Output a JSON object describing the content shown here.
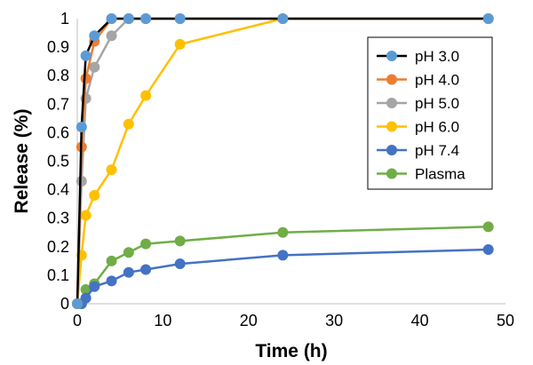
{
  "chart_data": {
    "type": "line",
    "title": "",
    "xlabel": "Time (h)",
    "ylabel": "Release (%)",
    "xlim": [
      0,
      50
    ],
    "ylim": [
      0,
      1
    ],
    "x_ticks": [
      "0",
      "10",
      "20",
      "30",
      "40",
      "50"
    ],
    "y_ticks": [
      "0",
      "0.1",
      "0.2",
      "0.3",
      "0.4",
      "0.5",
      "0.6",
      "0.7",
      "0.8",
      "0.9",
      "1"
    ],
    "grid": false,
    "legend_position": "top-right",
    "series": [
      {
        "name": "pH 3.0",
        "color": "#5b9bd5",
        "line_color": "#000000",
        "x": [
          0,
          0.5,
          1,
          2,
          4,
          6,
          8,
          12,
          24,
          48
        ],
        "y": [
          0,
          0.62,
          0.87,
          0.94,
          1.0,
          1.0,
          1.0,
          1.0,
          1.0,
          1.0
        ]
      },
      {
        "name": "pH 4.0",
        "color": "#ed7d31",
        "line_color": "#ed7d31",
        "x": [
          0,
          0.5,
          1,
          2,
          4,
          6,
          8,
          12,
          24,
          48
        ],
        "y": [
          0,
          0.55,
          0.79,
          0.92,
          1.0,
          1.0,
          1.0,
          1.0,
          1.0,
          1.0
        ]
      },
      {
        "name": "pH 5.0",
        "color": "#a5a5a5",
        "line_color": "#a5a5a5",
        "x": [
          0,
          0.5,
          1,
          2,
          4,
          6,
          8,
          12,
          24,
          48
        ],
        "y": [
          0,
          0.43,
          0.72,
          0.83,
          0.94,
          1.0,
          1.0,
          1.0,
          1.0,
          1.0
        ]
      },
      {
        "name": "pH 6.0",
        "color": "#ffc000",
        "line_color": "#ffc000",
        "x": [
          0,
          0.5,
          1,
          2,
          4,
          6,
          8,
          12,
          24,
          48
        ],
        "y": [
          0,
          0.17,
          0.31,
          0.38,
          0.47,
          0.63,
          0.73,
          0.91,
          1.0,
          1.0
        ]
      },
      {
        "name": "pH 7.4",
        "color": "#4472c4",
        "line_color": "#4472c4",
        "x": [
          0,
          0.5,
          1,
          2,
          4,
          6,
          8,
          12,
          24,
          48
        ],
        "y": [
          0,
          0,
          0.02,
          0.06,
          0.08,
          0.11,
          0.12,
          0.14,
          0.17,
          0.19
        ]
      },
      {
        "name": "Plasma",
        "color": "#70ad47",
        "line_color": "#70ad47",
        "x": [
          0,
          0.5,
          1,
          2,
          4,
          6,
          8,
          12,
          24,
          48
        ],
        "y": [
          0,
          0,
          0.05,
          0.07,
          0.15,
          0.18,
          0.21,
          0.22,
          0.25,
          0.27
        ]
      }
    ]
  }
}
